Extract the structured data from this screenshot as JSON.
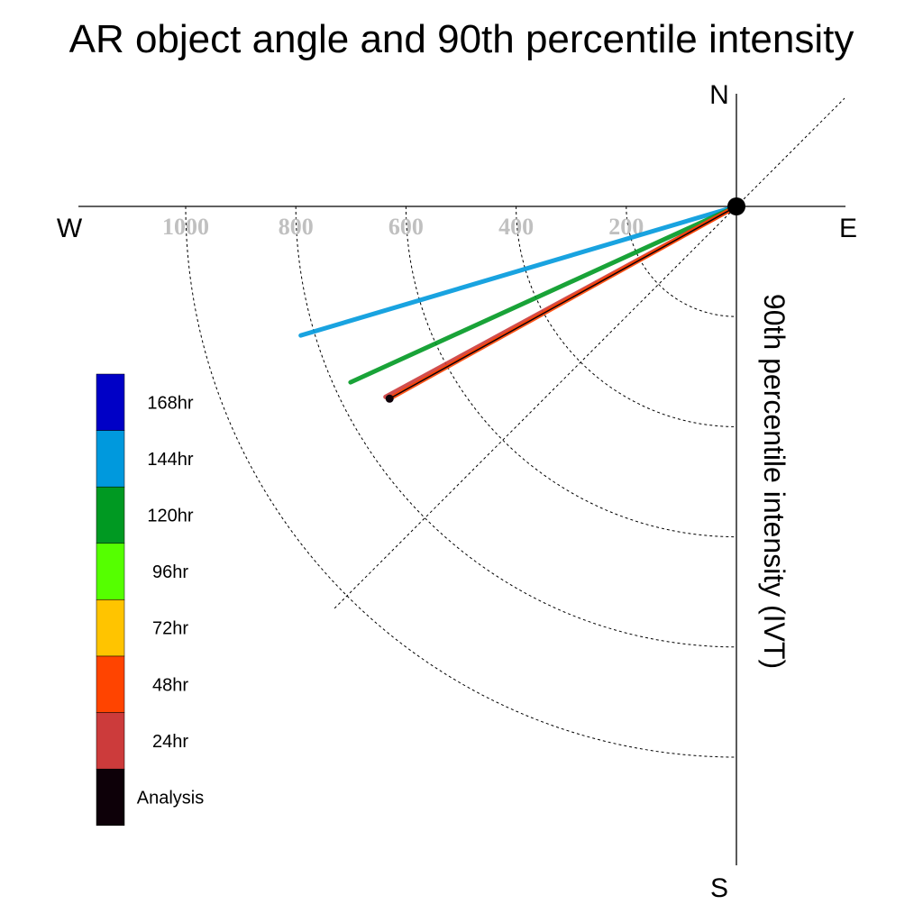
{
  "chart_data": {
    "type": "polar-vector",
    "title": "AR object angle and 90th percentile intensity",
    "radial_label": "90th percentile intensity (IVT)",
    "compass": {
      "north": "N",
      "south": "S",
      "east": "E",
      "west": "W"
    },
    "radial_ticks": [
      "1000",
      "800",
      "600",
      "400",
      "200"
    ],
    "radial_tick_values": [
      1000,
      800,
      600,
      400,
      200
    ],
    "rlim": [
      0,
      1200
    ],
    "series": [
      {
        "name": "144hr",
        "color": "#0099dd",
        "intensity": 825,
        "angle_below_west_deg": 16.5
      },
      {
        "name": "120hr",
        "color": "#009922",
        "intensity": 770,
        "angle_below_west_deg": 24.5
      },
      {
        "name": "24hr",
        "color": "#cc3b3b",
        "intensity": 725,
        "angle_below_west_deg": 28.5
      },
      {
        "name": "48hr",
        "color": "#ff4400",
        "intensity": 720,
        "angle_below_west_deg": 29.0
      },
      {
        "name": "Analysis",
        "color": "#0d0008",
        "intensity": 720,
        "angle_below_west_deg": 29.0
      }
    ],
    "legend": [
      {
        "label": "168hr",
        "color": "#0000c6"
      },
      {
        "label": "144hr",
        "color": "#0099dd"
      },
      {
        "label": "120hr",
        "color": "#009922"
      },
      {
        "label": "96hr",
        "color": "#55ff00"
      },
      {
        "label": "72hr",
        "color": "#ffc400"
      },
      {
        "label": "48hr",
        "color": "#ff4400"
      },
      {
        "label": "24hr",
        "color": "#cc3b3b"
      },
      {
        "label": "Analysis",
        "color": "#0d0008"
      }
    ]
  }
}
